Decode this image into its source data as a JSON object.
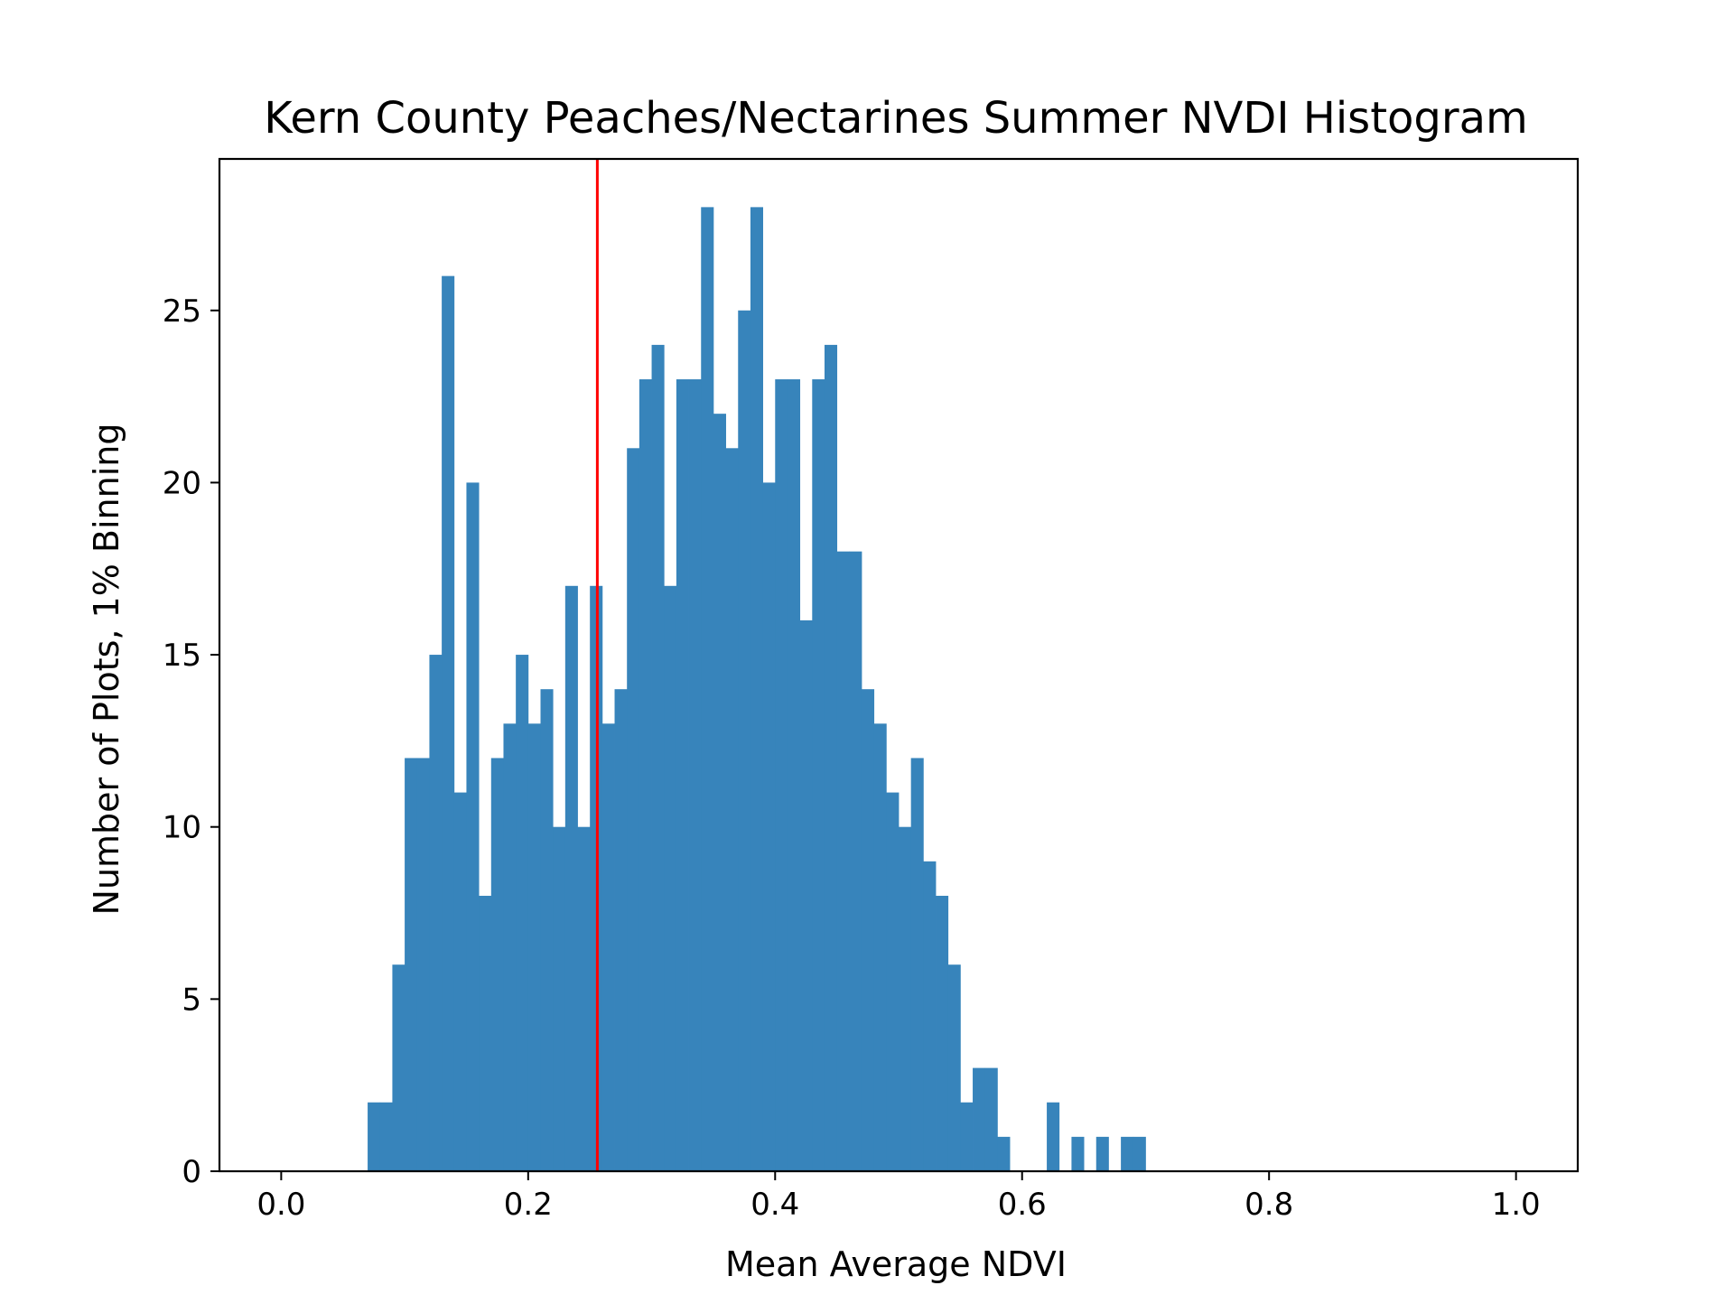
{
  "chart_data": {
    "type": "bar",
    "title": "Kern County Peaches/Nectarines Summer NVDI Histogram",
    "xlabel": "Mean Average NDVI",
    "ylabel": "Number of Plots, 1% Binning",
    "xlim": [
      -0.05,
      1.05
    ],
    "ylim": [
      0,
      29.4
    ],
    "x_ticks": [
      "0.0",
      "0.2",
      "0.4",
      "0.6",
      "0.8",
      "1.0"
    ],
    "y_ticks": [
      "0",
      "5",
      "10",
      "15",
      "20",
      "25"
    ],
    "bin_width": 0.01,
    "bin_start": 0.0,
    "values": [
      0,
      0,
      0,
      0,
      0,
      0,
      0,
      2,
      2,
      6,
      12,
      12,
      15,
      26,
      11,
      20,
      8,
      12,
      13,
      15,
      13,
      14,
      10,
      17,
      10,
      17,
      13,
      14,
      21,
      23,
      24,
      17,
      23,
      23,
      28,
      22,
      21,
      25,
      28,
      20,
      23,
      23,
      16,
      23,
      24,
      18,
      18,
      14,
      13,
      11,
      10,
      12,
      9,
      8,
      6,
      2,
      3,
      3,
      1,
      0,
      0,
      0,
      2,
      0,
      1,
      0,
      1,
      0,
      1,
      1,
      0,
      0,
      0,
      0,
      0,
      0,
      0,
      0,
      0,
      0,
      0,
      0,
      0,
      0,
      0,
      0,
      0,
      0,
      0,
      0,
      0,
      0,
      0,
      0,
      0,
      0,
      0,
      0,
      0,
      0
    ],
    "bar_color": "#3784bb",
    "reference_line": {
      "x": 0.256,
      "color": "#ff0000"
    },
    "grid": false,
    "legend": "none"
  }
}
